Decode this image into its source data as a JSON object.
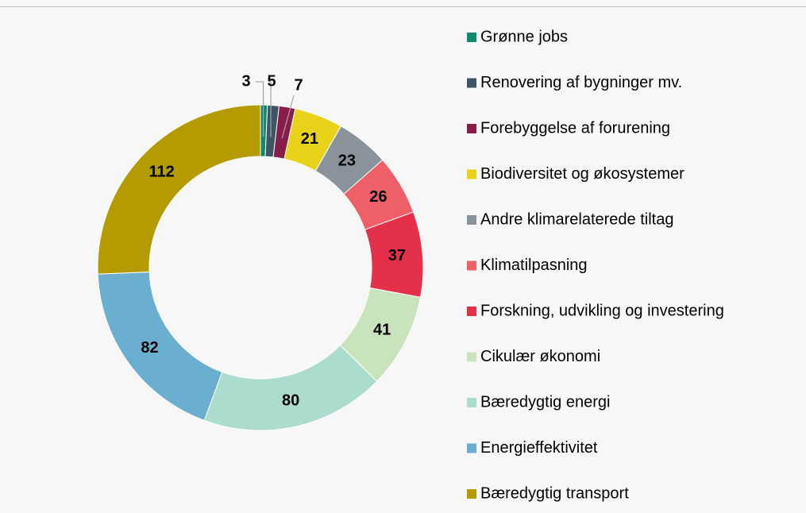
{
  "chart_data": {
    "type": "donut",
    "categories": [
      "Grønne jobs",
      "Renovering af bygninger mv.",
      "Forebyggelse af forurening",
      "Biodiversitet og økosystemer",
      "Andre klimarelaterede tiltag",
      "Klimatilpasning",
      "Forskning, udvikling og investering",
      "Cikulær økonomi",
      "Bæredygtig energi",
      "Energieffektivitet",
      "Bæredygtig transport"
    ],
    "values": [
      3,
      5,
      7,
      21,
      23,
      26,
      37,
      41,
      80,
      82,
      112
    ],
    "colors": [
      "#0f8a6c",
      "#3d5565",
      "#8a1c4a",
      "#e8d21a",
      "#8a939b",
      "#ee5f67",
      "#e5304a",
      "#c9e3bd",
      "#acdccd",
      "#6aaed0",
      "#b39b00"
    ],
    "legend": "right"
  }
}
